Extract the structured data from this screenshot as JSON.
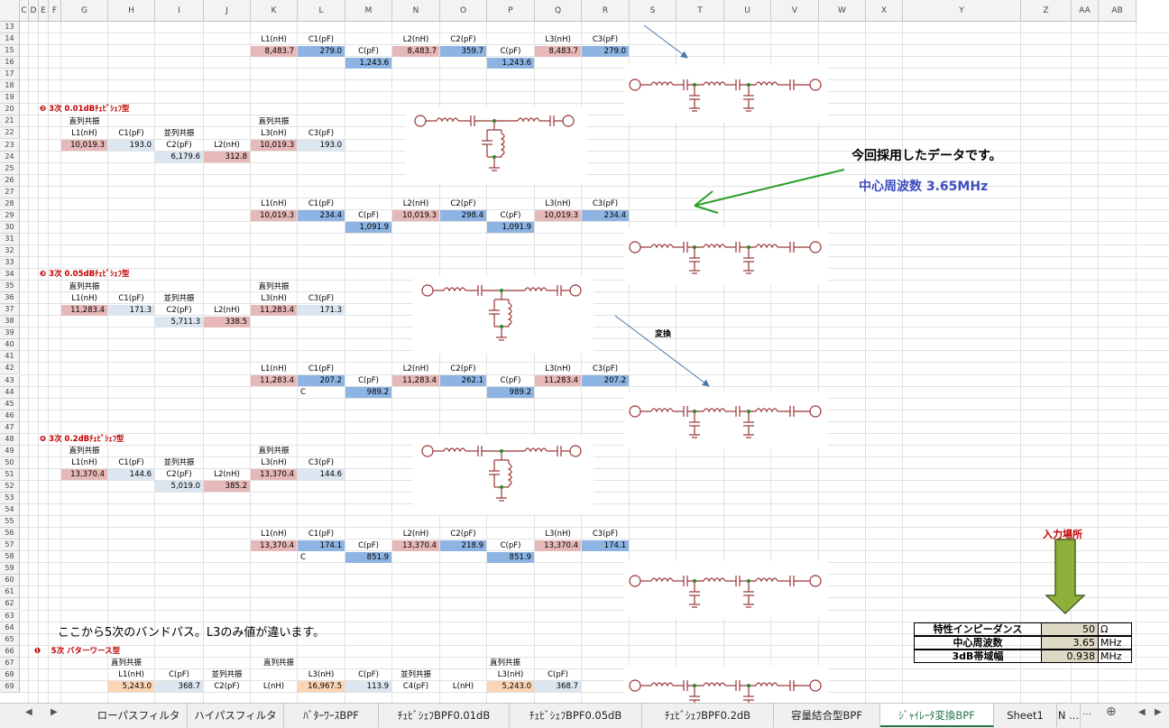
{
  "columns": [
    "C",
    "D",
    "E",
    "F",
    "G",
    "H",
    "I",
    "J",
    "K",
    "L",
    "M",
    "N",
    "O",
    "P",
    "Q",
    "R",
    "S",
    "T",
    "U",
    "V",
    "W",
    "X",
    "Y",
    "Z",
    "AA",
    "AB"
  ],
  "rows": [
    "13",
    "14",
    "15",
    "16",
    "17",
    "18",
    "19",
    "20",
    "21",
    "22",
    "23",
    "24",
    "25",
    "26",
    "27",
    "28",
    "29",
    "30",
    "31",
    "32",
    "33",
    "34",
    "35",
    "36",
    "37",
    "38",
    "39",
    "40",
    "41",
    "42",
    "43",
    "44",
    "45",
    "46",
    "47",
    "48",
    "49",
    "50",
    "51",
    "52",
    "53",
    "54",
    "55",
    "56",
    "57",
    "58",
    "59",
    "60",
    "61",
    "62",
    "63",
    "64",
    "65",
    "66",
    "67",
    "68",
    "69"
  ],
  "cells": [
    {
      "r": 14,
      "c": "K",
      "t": "L1(nH)"
    },
    {
      "r": 14,
      "c": "L",
      "t": "C1(pF)"
    },
    {
      "r": 14,
      "c": "N",
      "t": "L2(nH)"
    },
    {
      "r": 14,
      "c": "O",
      "t": "C2(pF)"
    },
    {
      "r": 14,
      "c": "Q",
      "t": "L3(nH)"
    },
    {
      "r": 14,
      "c": "R",
      "t": "C3(pF)"
    },
    {
      "r": 15,
      "c": "K",
      "t": "8,483.7",
      "f": "pink"
    },
    {
      "r": 15,
      "c": "L",
      "t": "279.0",
      "f": "blue"
    },
    {
      "r": 15,
      "c": "M",
      "t": "C(pF)"
    },
    {
      "r": 15,
      "c": "N",
      "t": "8,483.7",
      "f": "pink"
    },
    {
      "r": 15,
      "c": "O",
      "t": "359.7",
      "f": "blue"
    },
    {
      "r": 15,
      "c": "P",
      "t": "C(pF)"
    },
    {
      "r": 15,
      "c": "Q",
      "t": "8,483.7",
      "f": "pink"
    },
    {
      "r": 15,
      "c": "R",
      "t": "279.0",
      "f": "blue"
    },
    {
      "r": 16,
      "c": "M",
      "t": "1,243.6",
      "f": "blue"
    },
    {
      "r": 16,
      "c": "P",
      "t": "1,243.6",
      "f": "blue"
    },
    {
      "r": 21,
      "c": "G",
      "t": "直列共振"
    },
    {
      "r": 21,
      "c": "K",
      "t": "直列共振"
    },
    {
      "r": 22,
      "c": "G",
      "t": "L1(nH)"
    },
    {
      "r": 22,
      "c": "H",
      "t": "C1(pF)"
    },
    {
      "r": 22,
      "c": "I",
      "t": "並列共振"
    },
    {
      "r": 22,
      "c": "K",
      "t": "L3(nH)"
    },
    {
      "r": 22,
      "c": "L",
      "t": "C3(pF)"
    },
    {
      "r": 23,
      "c": "G",
      "t": "10,019.3",
      "f": "pink"
    },
    {
      "r": 23,
      "c": "H",
      "t": "193.0",
      "f": "lblue"
    },
    {
      "r": 23,
      "c": "I",
      "t": "C2(pF)"
    },
    {
      "r": 23,
      "c": "J",
      "t": "L2(nH)"
    },
    {
      "r": 23,
      "c": "K",
      "t": "10,019.3",
      "f": "pink"
    },
    {
      "r": 23,
      "c": "L",
      "t": "193.0",
      "f": "lblue"
    },
    {
      "r": 24,
      "c": "I",
      "t": "6,179.6",
      "f": "lblue"
    },
    {
      "r": 24,
      "c": "J",
      "t": "312.8",
      "f": "pink"
    },
    {
      "r": 28,
      "c": "K",
      "t": "L1(nH)"
    },
    {
      "r": 28,
      "c": "L",
      "t": "C1(pF)"
    },
    {
      "r": 28,
      "c": "N",
      "t": "L2(nH)"
    },
    {
      "r": 28,
      "c": "O",
      "t": "C2(pF)"
    },
    {
      "r": 28,
      "c": "Q",
      "t": "L3(nH)"
    },
    {
      "r": 28,
      "c": "R",
      "t": "C3(pF)"
    },
    {
      "r": 29,
      "c": "K",
      "t": "10,019.3",
      "f": "pink"
    },
    {
      "r": 29,
      "c": "L",
      "t": "234.4",
      "f": "blue"
    },
    {
      "r": 29,
      "c": "M",
      "t": "C(pF)"
    },
    {
      "r": 29,
      "c": "N",
      "t": "10,019.3",
      "f": "pink"
    },
    {
      "r": 29,
      "c": "O",
      "t": "298.4",
      "f": "blue"
    },
    {
      "r": 29,
      "c": "P",
      "t": "C(pF)"
    },
    {
      "r": 29,
      "c": "Q",
      "t": "10,019.3",
      "f": "pink"
    },
    {
      "r": 29,
      "c": "R",
      "t": "234.4",
      "f": "blue"
    },
    {
      "r": 30,
      "c": "M",
      "t": "1,091.9",
      "f": "blue"
    },
    {
      "r": 30,
      "c": "P",
      "t": "1,091.9",
      "f": "blue"
    },
    {
      "r": 35,
      "c": "G",
      "t": "直列共振"
    },
    {
      "r": 35,
      "c": "K",
      "t": "直列共振"
    },
    {
      "r": 36,
      "c": "G",
      "t": "L1(nH)"
    },
    {
      "r": 36,
      "c": "H",
      "t": "C1(pF)"
    },
    {
      "r": 36,
      "c": "I",
      "t": "並列共振"
    },
    {
      "r": 36,
      "c": "K",
      "t": "L3(nH)"
    },
    {
      "r": 36,
      "c": "L",
      "t": "C3(pF)"
    },
    {
      "r": 37,
      "c": "G",
      "t": "11,283.4",
      "f": "pink"
    },
    {
      "r": 37,
      "c": "H",
      "t": "171.3",
      "f": "lblue"
    },
    {
      "r": 37,
      "c": "I",
      "t": "C2(pF)"
    },
    {
      "r": 37,
      "c": "J",
      "t": "L2(nH)"
    },
    {
      "r": 37,
      "c": "K",
      "t": "11,283.4",
      "f": "pink"
    },
    {
      "r": 37,
      "c": "L",
      "t": "171.3",
      "f": "lblue"
    },
    {
      "r": 38,
      "c": "I",
      "t": "5,711.3",
      "f": "lblue"
    },
    {
      "r": 38,
      "c": "J",
      "t": "338.5",
      "f": "pink"
    },
    {
      "r": 42,
      "c": "K",
      "t": "L1(nH)"
    },
    {
      "r": 42,
      "c": "L",
      "t": "C1(pF)"
    },
    {
      "r": 42,
      "c": "N",
      "t": "L2(nH)"
    },
    {
      "r": 42,
      "c": "O",
      "t": "C2(pF)"
    },
    {
      "r": 42,
      "c": "Q",
      "t": "L3(nH)"
    },
    {
      "r": 42,
      "c": "R",
      "t": "C3(pF)"
    },
    {
      "r": 43,
      "c": "K",
      "t": "11,283.4",
      "f": "pink"
    },
    {
      "r": 43,
      "c": "L",
      "t": "207.2",
      "f": "blue"
    },
    {
      "r": 43,
      "c": "M",
      "t": "C(pF)"
    },
    {
      "r": 43,
      "c": "N",
      "t": "11,283.4",
      "f": "pink"
    },
    {
      "r": 43,
      "c": "O",
      "t": "262.1",
      "f": "blue"
    },
    {
      "r": 43,
      "c": "P",
      "t": "C(pF)"
    },
    {
      "r": 43,
      "c": "Q",
      "t": "11,283.4",
      "f": "pink"
    },
    {
      "r": 43,
      "c": "R",
      "t": "207.2",
      "f": "blue"
    },
    {
      "r": 44,
      "c": "L",
      "t": "C",
      "a": "l"
    },
    {
      "r": 44,
      "c": "M",
      "t": "989.2",
      "f": "blue"
    },
    {
      "r": 44,
      "c": "P",
      "t": "989.2",
      "f": "blue"
    },
    {
      "r": 49,
      "c": "G",
      "t": "直列共振"
    },
    {
      "r": 49,
      "c": "K",
      "t": "直列共振"
    },
    {
      "r": 50,
      "c": "G",
      "t": "L1(nH)"
    },
    {
      "r": 50,
      "c": "H",
      "t": "C1(pF)"
    },
    {
      "r": 50,
      "c": "I",
      "t": "並列共振"
    },
    {
      "r": 50,
      "c": "K",
      "t": "L3(nH)"
    },
    {
      "r": 50,
      "c": "L",
      "t": "C3(pF)"
    },
    {
      "r": 51,
      "c": "G",
      "t": "13,370.4",
      "f": "pink"
    },
    {
      "r": 51,
      "c": "H",
      "t": "144.6",
      "f": "lblue"
    },
    {
      "r": 51,
      "c": "I",
      "t": "C2(pF)"
    },
    {
      "r": 51,
      "c": "J",
      "t": "L2(nH)"
    },
    {
      "r": 51,
      "c": "K",
      "t": "13,370.4",
      "f": "pink"
    },
    {
      "r": 51,
      "c": "L",
      "t": "144.6",
      "f": "lblue"
    },
    {
      "r": 52,
      "c": "I",
      "t": "5,019.0",
      "f": "lblue"
    },
    {
      "r": 52,
      "c": "J",
      "t": "385.2",
      "f": "pink"
    },
    {
      "r": 56,
      "c": "K",
      "t": "L1(nH)"
    },
    {
      "r": 56,
      "c": "L",
      "t": "C1(pF)"
    },
    {
      "r": 56,
      "c": "N",
      "t": "L2(nH)"
    },
    {
      "r": 56,
      "c": "O",
      "t": "C2(pF)"
    },
    {
      "r": 56,
      "c": "Q",
      "t": "L3(nH)"
    },
    {
      "r": 56,
      "c": "R",
      "t": "C3(pF)"
    },
    {
      "r": 57,
      "c": "K",
      "t": "13,370.4",
      "f": "pink"
    },
    {
      "r": 57,
      "c": "L",
      "t": "174.1",
      "f": "blue"
    },
    {
      "r": 57,
      "c": "M",
      "t": "C(pF)"
    },
    {
      "r": 57,
      "c": "N",
      "t": "13,370.4",
      "f": "pink"
    },
    {
      "r": 57,
      "c": "O",
      "t": "218.9",
      "f": "blue"
    },
    {
      "r": 57,
      "c": "P",
      "t": "C(pF)"
    },
    {
      "r": 57,
      "c": "Q",
      "t": "13,370.4",
      "f": "pink"
    },
    {
      "r": 57,
      "c": "R",
      "t": "174.1",
      "f": "blue"
    },
    {
      "r": 58,
      "c": "L",
      "t": "C",
      "a": "l"
    },
    {
      "r": 58,
      "c": "M",
      "t": "851.9",
      "f": "blue"
    },
    {
      "r": 58,
      "c": "P",
      "t": "851.9",
      "f": "blue"
    },
    {
      "r": 67,
      "c": "H",
      "t": "直列共振",
      "a": "l"
    },
    {
      "r": 67,
      "c": "K",
      "t": "直列共振",
      "a": "r"
    },
    {
      "r": 67,
      "c": "P",
      "t": "直列共振",
      "a": "l"
    },
    {
      "r": 68,
      "c": "H",
      "t": "L1(nH)"
    },
    {
      "r": 68,
      "c": "I",
      "t": "C(pF)"
    },
    {
      "r": 68,
      "c": "J",
      "t": "並列共振"
    },
    {
      "r": 68,
      "c": "L",
      "t": "L3(nH)"
    },
    {
      "r": 68,
      "c": "M",
      "t": "C(pF)"
    },
    {
      "r": 68,
      "c": "N",
      "t": "並列共振"
    },
    {
      "r": 68,
      "c": "P",
      "t": "L3(nH)"
    },
    {
      "r": 68,
      "c": "Q",
      "t": "C(pF)"
    },
    {
      "r": 69,
      "c": "H",
      "t": "5,243.0",
      "f": "peach"
    },
    {
      "r": 69,
      "c": "I",
      "t": "368.7",
      "f": "lblue"
    },
    {
      "r": 69,
      "c": "J",
      "t": "C2(pF)"
    },
    {
      "r": 69,
      "c": "K",
      "t": "L(nH)"
    },
    {
      "r": 69,
      "c": "L",
      "t": "16,967.5",
      "f": "peach"
    },
    {
      "r": 69,
      "c": "M",
      "t": "113.9",
      "f": "lblue"
    },
    {
      "r": 69,
      "c": "N",
      "t": "C4(pF)"
    },
    {
      "r": 69,
      "c": "O",
      "t": "L(nH)"
    },
    {
      "r": 69,
      "c": "P",
      "t": "5,243.0",
      "f": "peach"
    },
    {
      "r": 69,
      "c": "Q",
      "t": "368.7",
      "f": "lblue"
    }
  ],
  "section_headers": [
    {
      "r": 20,
      "t": "❷ 3次 0.01dBﾁｪﾋﾞｼｪﾌ型"
    },
    {
      "r": 34,
      "t": "❸ 3次 0.05dBﾁｪﾋﾞｼｪﾌ型"
    },
    {
      "r": 48,
      "t": "❹ 3次 0.2dBﾁｪﾋﾞｼｪﾌ型"
    },
    {
      "r": 66,
      "t": "❶　 5次 バターワース型"
    }
  ],
  "notes": {
    "adopted": "今回採用したデータです。",
    "center_freq": "中心周波数 3.65MHz",
    "convert": "変換",
    "input_place": "入力場所",
    "five_order": "ここから5次のバンドパス。L3のみ値が違います。"
  },
  "input_table": [
    {
      "label": "特性インピーダンス",
      "value": "50",
      "unit": "Ω"
    },
    {
      "label": "中心周波数",
      "value": "3.65",
      "unit": "MHz"
    },
    {
      "label": "3dB帯域幅",
      "value": "0.938",
      "unit": "MHz"
    }
  ],
  "tabs": [
    {
      "label": "ローパスフィルタ"
    },
    {
      "label": "ハイパスフィルタ"
    },
    {
      "label": "ﾊﾞﾀｰﾜｰｽBPF"
    },
    {
      "label": "ﾁｪﾋﾞｼｪﾌBPF0.01dB"
    },
    {
      "label": "ﾁｪﾋﾞｼｪﾌBPF0.05dB"
    },
    {
      "label": "ﾁｪﾋﾞｼｪﾌBPF0.2dB"
    },
    {
      "label": "容量結合型BPF"
    },
    {
      "label": "ｼﾞｬｲﾚｰﾀ変換BPF",
      "active": true
    },
    {
      "label": "Sheet1"
    },
    {
      "label": "N ..."
    }
  ],
  "colors": {
    "pink": "#e6b8b7",
    "blue": "#8db4e2",
    "light_blue": "#dce6f1",
    "peach": "#fcd5b4",
    "header_red": "#c00000",
    "note_blue": "#3f4fbf",
    "arrow_green": "#2ca02c",
    "arrow_olive": "#8db03a",
    "circuit": "#993333"
  }
}
